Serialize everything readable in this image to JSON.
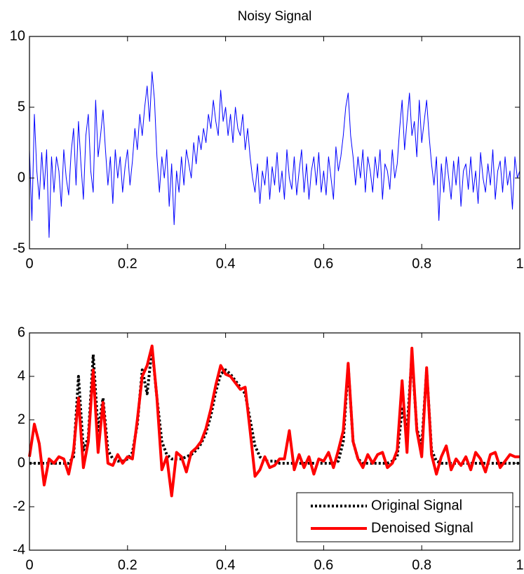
{
  "chart_data": [
    {
      "type": "line",
      "title": "Noisy Signal",
      "x": [
        0,
        0.005,
        0.01,
        0.015,
        0.02,
        0.025,
        0.03,
        0.035,
        0.04,
        0.045,
        0.05,
        0.055,
        0.06,
        0.065,
        0.07,
        0.075,
        0.08,
        0.085,
        0.09,
        0.095,
        0.1,
        0.105,
        0.11,
        0.115,
        0.12,
        0.125,
        0.13,
        0.135,
        0.14,
        0.145,
        0.15,
        0.155,
        0.16,
        0.165,
        0.17,
        0.175,
        0.18,
        0.185,
        0.19,
        0.195,
        0.2,
        0.205,
        0.21,
        0.215,
        0.22,
        0.225,
        0.23,
        0.235,
        0.24,
        0.245,
        0.25,
        0.255,
        0.26,
        0.265,
        0.27,
        0.275,
        0.28,
        0.285,
        0.29,
        0.295,
        0.3,
        0.305,
        0.31,
        0.315,
        0.32,
        0.325,
        0.33,
        0.335,
        0.34,
        0.345,
        0.35,
        0.355,
        0.36,
        0.365,
        0.37,
        0.375,
        0.38,
        0.385,
        0.39,
        0.395,
        0.4,
        0.405,
        0.41,
        0.415,
        0.42,
        0.425,
        0.43,
        0.435,
        0.44,
        0.445,
        0.45,
        0.455,
        0.46,
        0.465,
        0.47,
        0.475,
        0.48,
        0.485,
        0.49,
        0.495,
        0.5,
        0.505,
        0.51,
        0.515,
        0.52,
        0.525,
        0.53,
        0.535,
        0.54,
        0.545,
        0.55,
        0.555,
        0.56,
        0.565,
        0.57,
        0.575,
        0.58,
        0.585,
        0.59,
        0.595,
        0.6,
        0.605,
        0.61,
        0.615,
        0.62,
        0.625,
        0.63,
        0.635,
        0.64,
        0.645,
        0.65,
        0.655,
        0.66,
        0.665,
        0.67,
        0.675,
        0.68,
        0.685,
        0.69,
        0.695,
        0.7,
        0.705,
        0.71,
        0.715,
        0.72,
        0.725,
        0.73,
        0.735,
        0.74,
        0.745,
        0.75,
        0.755,
        0.76,
        0.765,
        0.77,
        0.775,
        0.78,
        0.785,
        0.79,
        0.795,
        0.8,
        0.805,
        0.81,
        0.815,
        0.82,
        0.825,
        0.83,
        0.835,
        0.84,
        0.845,
        0.85,
        0.855,
        0.86,
        0.865,
        0.87,
        0.875,
        0.88,
        0.885,
        0.89,
        0.895,
        0.9,
        0.905,
        0.91,
        0.915,
        0.92,
        0.925,
        0.93,
        0.935,
        0.94,
        0.945,
        0.95,
        0.955,
        0.96,
        0.965,
        0.97,
        0.975,
        0.98,
        0.985,
        0.99,
        0.995,
        1
      ],
      "series": [
        {
          "color": "#0000ff",
          "values": [
            2.0,
            -3,
            4.5,
            0.5,
            -1.5,
            1.8,
            -0.8,
            2.0,
            -4.2,
            1.5,
            -1.0,
            1.5,
            0.5,
            -2.0,
            2.0,
            0.0,
            -1.2,
            1.8,
            3.5,
            -0.5,
            4.0,
            1.0,
            -1.5,
            3.0,
            4.5,
            0.5,
            -1.0,
            5.5,
            1.5,
            3.0,
            4.8,
            2.0,
            -0.5,
            1.5,
            -1.8,
            2.0,
            0.0,
            1.5,
            -1.0,
            0.8,
            2.0,
            -0.5,
            1.2,
            3.5,
            2.0,
            4.5,
            3.0,
            5.0,
            6.5,
            4.0,
            7.5,
            5.5,
            1.5,
            -1.0,
            1.5,
            0.0,
            2.0,
            -2.0,
            1.0,
            -3.3,
            0.5,
            -1.0,
            1.5,
            -0.5,
            2.0,
            1.0,
            0.0,
            2.5,
            1.0,
            3.0,
            2.0,
            3.5,
            2.5,
            4.5,
            3.5,
            5.5,
            4.0,
            3.0,
            6.2,
            4.0,
            5.0,
            3.0,
            4.5,
            2.5,
            5.0,
            3.5,
            3.0,
            4.5,
            2.0,
            3.5,
            1.5,
            0.0,
            -1.0,
            1.0,
            -1.8,
            0.5,
            -0.5,
            1.5,
            -1.5,
            0.8,
            -0.5,
            1.8,
            -1.0,
            0.5,
            -1.5,
            2.0,
            0.0,
            -0.8,
            1.5,
            -1.2,
            0.5,
            2.0,
            -1.0,
            1.0,
            -1.5,
            0.5,
            1.5,
            -0.5,
            1.8,
            -1.0,
            0.5,
            -1.2,
            1.5,
            0.0,
            -1.5,
            2.2,
            0.5,
            1.5,
            3.0,
            5.0,
            6.0,
            3.0,
            1.5,
            -0.5,
            1.5,
            0.0,
            2.0,
            -1.0,
            1.5,
            0.5,
            -1.0,
            1.5,
            0.0,
            2.0,
            -1.5,
            1.0,
            0.5,
            -0.8,
            2.0,
            0.0,
            1.0,
            3.5,
            5.5,
            2.0,
            4.0,
            6.0,
            3.0,
            4.0,
            1.5,
            5.5,
            2.5,
            4.0,
            5.5,
            3.0,
            1.0,
            -0.5,
            1.5,
            -3.0,
            1.0,
            -1.0,
            1.5,
            0.0,
            -1.5,
            1.2,
            -0.5,
            1.5,
            -2.0,
            0.5,
            1.0,
            -0.8,
            1.5,
            -1.0,
            0.5,
            -1.8,
            1.8,
            0.0,
            -1.0,
            1.0,
            -0.5,
            2.0,
            -1.5,
            0.5,
            1.2,
            -1.0,
            1.5,
            -0.5,
            0.5,
            -2.2,
            1.5,
            0.0,
            0.5
          ]
        }
      ],
      "xlim": [
        0,
        1
      ],
      "xticks": [
        0,
        0.2,
        0.4,
        0.6,
        0.8,
        1
      ],
      "ylim": [
        -5,
        10
      ],
      "yticks": [
        -5,
        0,
        5,
        10
      ]
    },
    {
      "type": "line",
      "x": [
        0,
        0.01,
        0.02,
        0.03,
        0.04,
        0.05,
        0.06,
        0.07,
        0.08,
        0.09,
        0.1,
        0.11,
        0.12,
        0.13,
        0.14,
        0.15,
        0.16,
        0.17,
        0.18,
        0.19,
        0.2,
        0.21,
        0.22,
        0.23,
        0.24,
        0.25,
        0.26,
        0.27,
        0.28,
        0.29,
        0.3,
        0.31,
        0.32,
        0.33,
        0.34,
        0.35,
        0.36,
        0.37,
        0.38,
        0.39,
        0.4,
        0.41,
        0.42,
        0.43,
        0.44,
        0.45,
        0.46,
        0.47,
        0.48,
        0.49,
        0.5,
        0.51,
        0.52,
        0.53,
        0.54,
        0.55,
        0.56,
        0.57,
        0.58,
        0.59,
        0.6,
        0.61,
        0.62,
        0.63,
        0.64,
        0.65,
        0.66,
        0.67,
        0.68,
        0.69,
        0.7,
        0.71,
        0.72,
        0.73,
        0.74,
        0.75,
        0.76,
        0.77,
        0.78,
        0.79,
        0.8,
        0.81,
        0.82,
        0.83,
        0.84,
        0.85,
        0.86,
        0.87,
        0.88,
        0.89,
        0.9,
        0.91,
        0.92,
        0.93,
        0.94,
        0.95,
        0.96,
        0.97,
        0.98,
        0.99,
        1
      ],
      "series": [
        {
          "name": "Original Signal",
          "color": "#000000",
          "linestyle": "dotted",
          "values": [
            0,
            0,
            0,
            0,
            0,
            0,
            0,
            0,
            0,
            0.3,
            4.0,
            0.6,
            1.2,
            5.0,
            1.5,
            3.0,
            0.6,
            0.2,
            0.1,
            0.1,
            0.2,
            0.5,
            1.8,
            4.3,
            3.2,
            5.3,
            3.0,
            1.0,
            0.4,
            0.2,
            0.2,
            0.2,
            0.3,
            0.4,
            0.6,
            0.9,
            1.4,
            2.2,
            3.3,
            4.1,
            4.3,
            4.1,
            3.8,
            3.5,
            3.2,
            2.0,
            0.8,
            0.3,
            0.1,
            0.1,
            0.1,
            0,
            0,
            0,
            0,
            0,
            0,
            0,
            0,
            0,
            0,
            0,
            0,
            0.1,
            1.0,
            4.5,
            1.0,
            0.2,
            0,
            0,
            0,
            0,
            0,
            0,
            0.1,
            0.3,
            2.5,
            1.5,
            5.0,
            1.6,
            0.8,
            4.3,
            0.6,
            0.1,
            0,
            0,
            0,
            0,
            0,
            0,
            0,
            0,
            0,
            0,
            0,
            0,
            0,
            0,
            0,
            0,
            0
          ]
        },
        {
          "name": "Denoised Signal",
          "color": "#ff0000",
          "linestyle": "solid",
          "values": [
            0.3,
            1.8,
            0.9,
            -1.0,
            0.2,
            0.0,
            0.3,
            0.2,
            -0.5,
            0.6,
            3.0,
            -0.2,
            1.0,
            4.3,
            0.5,
            2.8,
            0.0,
            -0.1,
            0.4,
            0.0,
            0.3,
            0.2,
            2.0,
            4.0,
            4.5,
            5.4,
            3.0,
            -0.3,
            0.3,
            -1.5,
            0.5,
            0.3,
            -0.4,
            0.5,
            0.7,
            1.0,
            1.6,
            2.5,
            3.6,
            4.5,
            4.1,
            4.0,
            3.7,
            3.4,
            3.5,
            1.5,
            -0.6,
            -0.3,
            0.3,
            -0.2,
            -0.1,
            0.2,
            0.2,
            1.5,
            -0.3,
            0.4,
            -0.2,
            0.3,
            -0.5,
            0.2,
            0.1,
            0.5,
            -0.2,
            0.6,
            1.5,
            4.6,
            1.0,
            0.2,
            -0.2,
            0.4,
            0.0,
            0.4,
            0.5,
            -0.2,
            0.0,
            0.6,
            3.8,
            0.5,
            5.3,
            1.5,
            0.3,
            4.4,
            0.4,
            -0.5,
            0.3,
            0.8,
            -0.3,
            0.2,
            -0.1,
            0.3,
            -0.3,
            0.5,
            0.2,
            -0.4,
            0.4,
            0.5,
            -0.2,
            0.1,
            0.4,
            0.3,
            0.3
          ]
        }
      ],
      "xlim": [
        0,
        1
      ],
      "xticks": [
        0,
        0.2,
        0.4,
        0.6,
        0.8,
        1
      ],
      "ylim": [
        -4,
        6
      ],
      "yticks": [
        -4,
        -2,
        0,
        2,
        4,
        6
      ],
      "legend": "lower right"
    }
  ]
}
